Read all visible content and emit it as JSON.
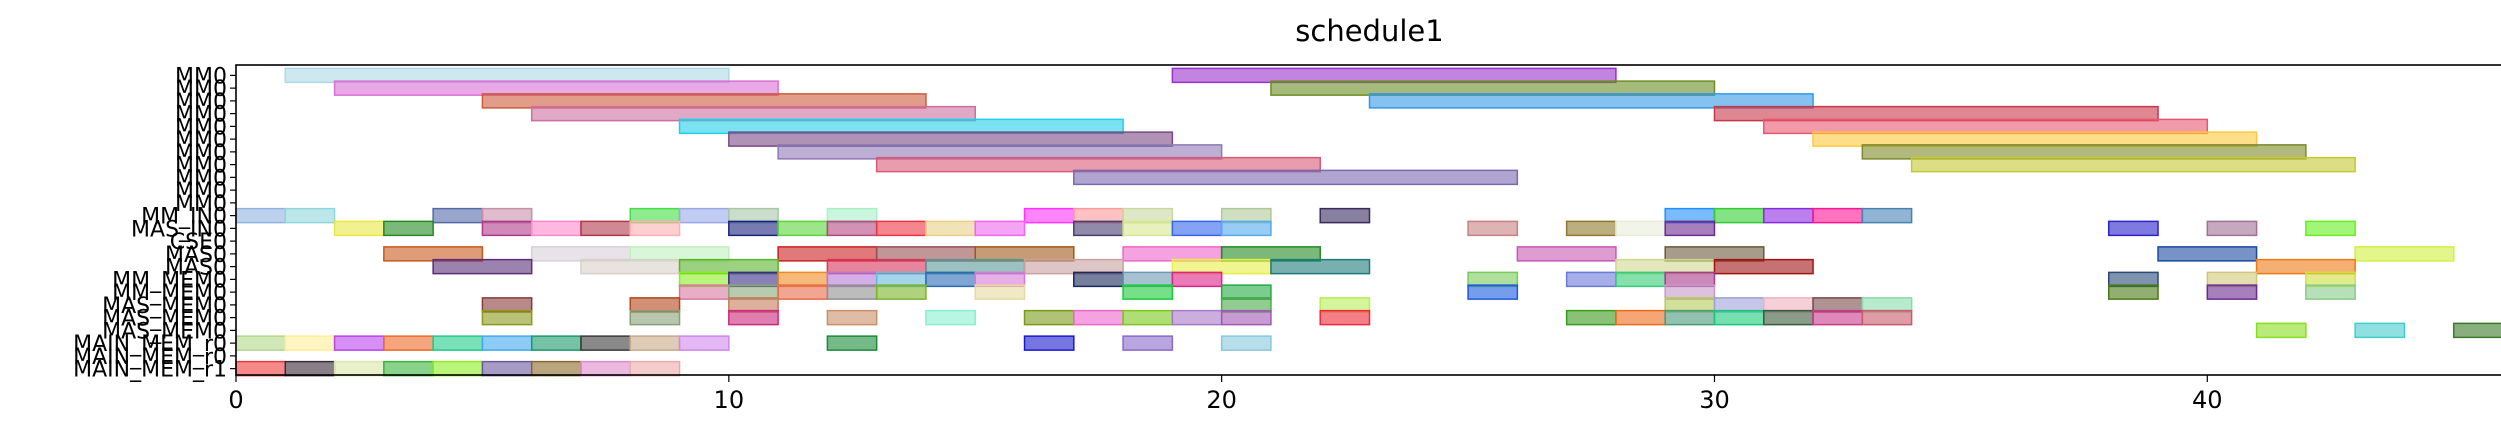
{
  "chart_data": {
    "type": "gantt",
    "title": "schedule1",
    "xlim": [
      0,
      46
    ],
    "xticks": [
      0,
      10,
      20,
      30,
      40
    ],
    "rows": [
      "MM0",
      "MM0",
      "MM0",
      "MM0",
      "MM0",
      "MM0",
      "MM0",
      "MM0",
      "MM0",
      "MM0",
      "MM0",
      "MM_IN0",
      "MAS_IN0",
      "CSE0",
      "MAS0",
      "MAS0",
      "MM_MEM0",
      "MM_MEM0",
      "MAS_MEM0",
      "MAS_MEM0",
      "MAS_MEM0",
      "MAIN_MEM_r0",
      "MAIN_MEM_r0",
      "MAIN_MEM_r1"
    ],
    "bars": [
      {
        "row": 0,
        "start": 1,
        "end": 10,
        "color": "#add8e6"
      },
      {
        "row": 0,
        "start": 19,
        "end": 28,
        "color": "#9932cc"
      },
      {
        "row": 1,
        "start": 2,
        "end": 11,
        "color": "#da70d6"
      },
      {
        "row": 1,
        "start": 21,
        "end": 30,
        "color": "#6b8e23"
      },
      {
        "row": 2,
        "start": 5,
        "end": 14,
        "color": "#cd5c3c"
      },
      {
        "row": 2,
        "start": 23,
        "end": 32,
        "color": "#3399e6"
      },
      {
        "row": 3,
        "start": 6,
        "end": 15,
        "color": "#cd6f9f"
      },
      {
        "row": 3,
        "start": 30,
        "end": 39,
        "color": "#c8374a"
      },
      {
        "row": 4,
        "start": 9,
        "end": 18,
        "color": "#22cfe8"
      },
      {
        "row": 4,
        "start": 31,
        "end": 40,
        "color": "#e85770"
      },
      {
        "row": 5,
        "start": 10,
        "end": 19,
        "color": "#7a4a85"
      },
      {
        "row": 5,
        "start": 32,
        "end": 41,
        "color": "#ffc83c"
      },
      {
        "row": 6,
        "start": 11,
        "end": 20,
        "color": "#8f7ab5"
      },
      {
        "row": 6,
        "start": 33,
        "end": 42,
        "color": "#7d8a2a"
      },
      {
        "row": 7,
        "start": 13,
        "end": 22,
        "color": "#d95a78"
      },
      {
        "row": 7,
        "start": 34,
        "end": 43,
        "color": "#c4c834"
      },
      {
        "row": 8,
        "start": 17,
        "end": 26,
        "color": "#7a69b0"
      },
      {
        "row": 11,
        "start": 0,
        "end": 1,
        "color": "#8fb2e0"
      },
      {
        "row": 11,
        "start": 1,
        "end": 2,
        "color": "#8fd6dc"
      },
      {
        "row": 11,
        "start": 4,
        "end": 5,
        "color": "#556aa8"
      },
      {
        "row": 11,
        "start": 5,
        "end": 6,
        "color": "#c890a8"
      },
      {
        "row": 11,
        "start": 8,
        "end": 9,
        "color": "#44dd44"
      },
      {
        "row": 11,
        "start": 9,
        "end": 10,
        "color": "#9aa8e8"
      },
      {
        "row": 11,
        "start": 10,
        "end": 11,
        "color": "#a8c8a8"
      },
      {
        "row": 11,
        "start": 12,
        "end": 13,
        "color": "#a8f0c8"
      },
      {
        "row": 11,
        "start": 16,
        "end": 17,
        "color": "#ff33ff"
      },
      {
        "row": 11,
        "start": 17,
        "end": 18,
        "color": "#ff9999"
      },
      {
        "row": 11,
        "start": 18,
        "end": 19,
        "color": "#c8d8a0"
      },
      {
        "row": 11,
        "start": 20,
        "end": 21,
        "color": "#b0c898"
      },
      {
        "row": 11,
        "start": 22,
        "end": 23,
        "color": "#3b2a5e"
      },
      {
        "row": 11,
        "start": 29,
        "end": 30,
        "color": "#1e90ff"
      },
      {
        "row": 11,
        "start": 30,
        "end": 31,
        "color": "#32cd32"
      },
      {
        "row": 11,
        "start": 31,
        "end": 32,
        "color": "#8a2be2"
      },
      {
        "row": 11,
        "start": 32,
        "end": 33,
        "color": "#ff1493"
      },
      {
        "row": 11,
        "start": 33,
        "end": 34,
        "color": "#4682b4"
      },
      {
        "row": 12,
        "start": 2,
        "end": 3,
        "color": "#e8e844"
      },
      {
        "row": 12,
        "start": 3,
        "end": 4,
        "color": "#228b22"
      },
      {
        "row": 12,
        "start": 5,
        "end": 6,
        "color": "#b03a8a"
      },
      {
        "row": 12,
        "start": 6,
        "end": 7,
        "color": "#ff88cc"
      },
      {
        "row": 12,
        "start": 7,
        "end": 8,
        "color": "#b03a4a"
      },
      {
        "row": 12,
        "start": 8,
        "end": 9,
        "color": "#ffb0b0"
      },
      {
        "row": 12,
        "start": 10,
        "end": 11,
        "color": "#1a237e"
      },
      {
        "row": 12,
        "start": 11,
        "end": 12,
        "color": "#5ad63a"
      },
      {
        "row": 12,
        "start": 12,
        "end": 13,
        "color": "#b54880"
      },
      {
        "row": 12,
        "start": 13,
        "end": 14,
        "color": "#ee3344"
      },
      {
        "row": 12,
        "start": 14,
        "end": 15,
        "color": "#e8d088"
      },
      {
        "row": 12,
        "start": 15,
        "end": 16,
        "color": "#ee66ee"
      },
      {
        "row": 12,
        "start": 17,
        "end": 18,
        "color": "#4a3c70"
      },
      {
        "row": 12,
        "start": 18,
        "end": 19,
        "color": "#d8e890"
      },
      {
        "row": 12,
        "start": 19,
        "end": 20,
        "color": "#3366ee"
      },
      {
        "row": 12,
        "start": 20,
        "end": 21,
        "color": "#55aaee"
      },
      {
        "row": 12,
        "start": 25,
        "end": 26,
        "color": "#c88080"
      },
      {
        "row": 12,
        "start": 27,
        "end": 28,
        "color": "#8f7a2a"
      },
      {
        "row": 12,
        "start": 28,
        "end": 29,
        "color": "#e8ecd8"
      },
      {
        "row": 12,
        "start": 29,
        "end": 30,
        "color": "#6a2a90"
      },
      {
        "row": 12,
        "start": 38,
        "end": 39,
        "color": "#2a22cc"
      },
      {
        "row": 12,
        "start": 40,
        "end": 41,
        "color": "#a07098"
      },
      {
        "row": 12,
        "start": 42,
        "end": 43,
        "color": "#66ee22"
      },
      {
        "row": 14,
        "start": 3,
        "end": 5,
        "color": "#c85a1e"
      },
      {
        "row": 14,
        "start": 6,
        "end": 8,
        "color": "#d8d0d8"
      },
      {
        "row": 14,
        "start": 8,
        "end": 10,
        "color": "#c0f0c0"
      },
      {
        "row": 14,
        "start": 11,
        "end": 13,
        "color": "#cc2222"
      },
      {
        "row": 14,
        "start": 13,
        "end": 15,
        "color": "#985050"
      },
      {
        "row": 14,
        "start": 15,
        "end": 17,
        "color": "#a0581a"
      },
      {
        "row": 14,
        "start": 18,
        "end": 20,
        "color": "#ee66cc"
      },
      {
        "row": 14,
        "start": 20,
        "end": 22,
        "color": "#228b22"
      },
      {
        "row": 14,
        "start": 26,
        "end": 28,
        "color": "#c85ab4"
      },
      {
        "row": 14,
        "start": 29,
        "end": 31,
        "color": "#6a5a3a"
      },
      {
        "row": 14,
        "start": 39,
        "end": 41,
        "color": "#1a4aa0"
      },
      {
        "row": 14,
        "start": 43,
        "end": 45,
        "color": "#d0f040"
      },
      {
        "row": 15,
        "start": 4,
        "end": 6,
        "color": "#5a2e78"
      },
      {
        "row": 15,
        "start": 7,
        "end": 9,
        "color": "#d8d0c8"
      },
      {
        "row": 15,
        "start": 9,
        "end": 11,
        "color": "#5ab42a"
      },
      {
        "row": 15,
        "start": 12,
        "end": 14,
        "color": "#d8345a"
      },
      {
        "row": 15,
        "start": 14,
        "end": 16,
        "color": "#5a9898"
      },
      {
        "row": 15,
        "start": 16,
        "end": 18,
        "color": "#c8a0a0"
      },
      {
        "row": 15,
        "start": 19,
        "end": 21,
        "color": "#e8ee44"
      },
      {
        "row": 15,
        "start": 21,
        "end": 23,
        "color": "#1e7a7a"
      },
      {
        "row": 15,
        "start": 28,
        "end": 30,
        "color": "#d0d890"
      },
      {
        "row": 15,
        "start": 30,
        "end": 32,
        "color": "#a01414"
      },
      {
        "row": 15,
        "start": 41,
        "end": 43,
        "color": "#ee7a14"
      },
      {
        "row": 16,
        "start": 9,
        "end": 10,
        "color": "#88ee22"
      },
      {
        "row": 16,
        "start": 10,
        "end": 11,
        "color": "#3a2a8a"
      },
      {
        "row": 16,
        "start": 11,
        "end": 12,
        "color": "#ee8a22"
      },
      {
        "row": 16,
        "start": 12,
        "end": 13,
        "color": "#b878d8"
      },
      {
        "row": 16,
        "start": 13,
        "end": 14,
        "color": "#66bbdd"
      },
      {
        "row": 16,
        "start": 14,
        "end": 15,
        "color": "#2a6ab4"
      },
      {
        "row": 16,
        "start": 15,
        "end": 16,
        "color": "#d878d8"
      },
      {
        "row": 16,
        "start": 17,
        "end": 18,
        "color": "#1a2a5a"
      },
      {
        "row": 16,
        "start": 18,
        "end": 19,
        "color": "#6a9ab4"
      },
      {
        "row": 16,
        "start": 19,
        "end": 20,
        "color": "#dd2288"
      },
      {
        "row": 16,
        "start": 25,
        "end": 26,
        "color": "#7acc5a"
      },
      {
        "row": 16,
        "start": 27,
        "end": 28,
        "color": "#6a7ad8"
      },
      {
        "row": 16,
        "start": 28,
        "end": 29,
        "color": "#33cc77"
      },
      {
        "row": 16,
        "start": 29,
        "end": 30,
        "color": "#a83a8a"
      },
      {
        "row": 16,
        "start": 38,
        "end": 39,
        "color": "#2a4a7a"
      },
      {
        "row": 16,
        "start": 40,
        "end": 41,
        "color": "#d0c878"
      },
      {
        "row": 16,
        "start": 42,
        "end": 43,
        "color": "#d0e040"
      },
      {
        "row": 17,
        "start": 9,
        "end": 10,
        "color": "#d878a0"
      },
      {
        "row": 17,
        "start": 10,
        "end": 11,
        "color": "#88a878"
      },
      {
        "row": 17,
        "start": 11,
        "end": 12,
        "color": "#e86a4a"
      },
      {
        "row": 17,
        "start": 12,
        "end": 13,
        "color": "#909090"
      },
      {
        "row": 17,
        "start": 13,
        "end": 14,
        "color": "#7ab42a"
      },
      {
        "row": 17,
        "start": 15,
        "end": 16,
        "color": "#e8d8a0"
      },
      {
        "row": 17,
        "start": 18,
        "end": 19,
        "color": "#1acc3a"
      },
      {
        "row": 17,
        "start": 20,
        "end": 21,
        "color": "#22aa44"
      },
      {
        "row": 17,
        "start": 25,
        "end": 26,
        "color": "#1a5ae0"
      },
      {
        "row": 17,
        "start": 29,
        "end": 30,
        "color": "#c898c8"
      },
      {
        "row": 17,
        "start": 38,
        "end": 39,
        "color": "#4a7a14"
      },
      {
        "row": 17,
        "start": 40,
        "end": 41,
        "color": "#6a2a90"
      },
      {
        "row": 17,
        "start": 42,
        "end": 43,
        "color": "#88cc88"
      },
      {
        "row": 18,
        "start": 5,
        "end": 6,
        "color": "#8a3a3a"
      },
      {
        "row": 18,
        "start": 8,
        "end": 9,
        "color": "#b4461a"
      },
      {
        "row": 18,
        "start": 10,
        "end": 11,
        "color": "#c87a5a"
      },
      {
        "row": 18,
        "start": 20,
        "end": 21,
        "color": "#4aaa4a"
      },
      {
        "row": 18,
        "start": 22,
        "end": 23,
        "color": "#b8ee55"
      },
      {
        "row": 18,
        "start": 29,
        "end": 30,
        "color": "#b4cc5a"
      },
      {
        "row": 18,
        "start": 30,
        "end": 31,
        "color": "#a0a0d8"
      },
      {
        "row": 18,
        "start": 31,
        "end": 32,
        "color": "#f0b0c0"
      },
      {
        "row": 18,
        "start": 32,
        "end": 33,
        "color": "#7a4a4a"
      },
      {
        "row": 18,
        "start": 33,
        "end": 34,
        "color": "#88dda8"
      },
      {
        "row": 19,
        "start": 5,
        "end": 6,
        "color": "#8a9a1a"
      },
      {
        "row": 19,
        "start": 8,
        "end": 9,
        "color": "#88a078"
      },
      {
        "row": 19,
        "start": 10,
        "end": 11,
        "color": "#cc2a7a"
      },
      {
        "row": 19,
        "start": 12,
        "end": 13,
        "color": "#c8906a"
      },
      {
        "row": 19,
        "start": 14,
        "end": 15,
        "color": "#88f0d0"
      },
      {
        "row": 19,
        "start": 16,
        "end": 17,
        "color": "#7a9a1a"
      },
      {
        "row": 19,
        "start": 17,
        "end": 18,
        "color": "#ee66cc"
      },
      {
        "row": 19,
        "start": 18,
        "end": 19,
        "color": "#7ac81a"
      },
      {
        "row": 19,
        "start": 19,
        "end": 20,
        "color": "#a878c8"
      },
      {
        "row": 19,
        "start": 20,
        "end": 21,
        "color": "#a05ab4"
      },
      {
        "row": 19,
        "start": 22,
        "end": 23,
        "color": "#ee2a3a"
      },
      {
        "row": 19,
        "start": 27,
        "end": 28,
        "color": "#3a9a1a"
      },
      {
        "row": 19,
        "start": 28,
        "end": 29,
        "color": "#ee6a1a"
      },
      {
        "row": 19,
        "start": 29,
        "end": 30,
        "color": "#4a9a7a"
      },
      {
        "row": 19,
        "start": 30,
        "end": 31,
        "color": "#1ac87a"
      },
      {
        "row": 19,
        "start": 31,
        "end": 32,
        "color": "#3a5a3a"
      },
      {
        "row": 19,
        "start": 32,
        "end": 33,
        "color": "#c83a8a"
      },
      {
        "row": 19,
        "start": 33,
        "end": 34,
        "color": "#c85a6a"
      },
      {
        "row": 20,
        "start": 41,
        "end": 42,
        "color": "#88dd22"
      },
      {
        "row": 20,
        "start": 43,
        "end": 44,
        "color": "#44cccc"
      },
      {
        "row": 20,
        "start": 45,
        "end": 46,
        "color": "#3a7a2a"
      },
      {
        "row": 21,
        "start": 0,
        "end": 1,
        "color": "#b0d888"
      },
      {
        "row": 21,
        "start": 1,
        "end": 2,
        "color": "#ffee99"
      },
      {
        "row": 21,
        "start": 2,
        "end": 3,
        "color": "#bb44ee"
      },
      {
        "row": 21,
        "start": 3,
        "end": 4,
        "color": "#ee6a2a"
      },
      {
        "row": 21,
        "start": 4,
        "end": 5,
        "color": "#22cc88"
      },
      {
        "row": 21,
        "start": 5,
        "end": 6,
        "color": "#44aaee"
      },
      {
        "row": 21,
        "start": 6,
        "end": 7,
        "color": "#1a9a6a"
      },
      {
        "row": 21,
        "start": 7,
        "end": 8,
        "color": "#3a3a3a"
      },
      {
        "row": 21,
        "start": 8,
        "end": 9,
        "color": "#c8a888"
      },
      {
        "row": 21,
        "start": 9,
        "end": 10,
        "color": "#d088ee"
      },
      {
        "row": 21,
        "start": 12,
        "end": 13,
        "color": "#1a8a3a"
      },
      {
        "row": 21,
        "start": 16,
        "end": 17,
        "color": "#1a1acc"
      },
      {
        "row": 21,
        "start": 18,
        "end": 19,
        "color": "#8a6acc"
      },
      {
        "row": 21,
        "start": 20,
        "end": 21,
        "color": "#88c8dd"
      },
      {
        "row": 23,
        "start": 0,
        "end": 1,
        "color": "#ee3a3a"
      },
      {
        "row": 23,
        "start": 1,
        "end": 2,
        "color": "#3a2a3a"
      },
      {
        "row": 23,
        "start": 2,
        "end": 3,
        "color": "#d8e8a8"
      },
      {
        "row": 23,
        "start": 3,
        "end": 4,
        "color": "#3ab43a"
      },
      {
        "row": 23,
        "start": 4,
        "end": 5,
        "color": "#88ee22"
      },
      {
        "row": 23,
        "start": 5,
        "end": 6,
        "color": "#6a5aa0"
      },
      {
        "row": 23,
        "start": 6,
        "end": 7,
        "color": "#8a6a2a"
      },
      {
        "row": 23,
        "start": 7,
        "end": 8,
        "color": "#dd88cc"
      },
      {
        "row": 23,
        "start": 8,
        "end": 9,
        "color": "#eeaaaa"
      }
    ]
  }
}
